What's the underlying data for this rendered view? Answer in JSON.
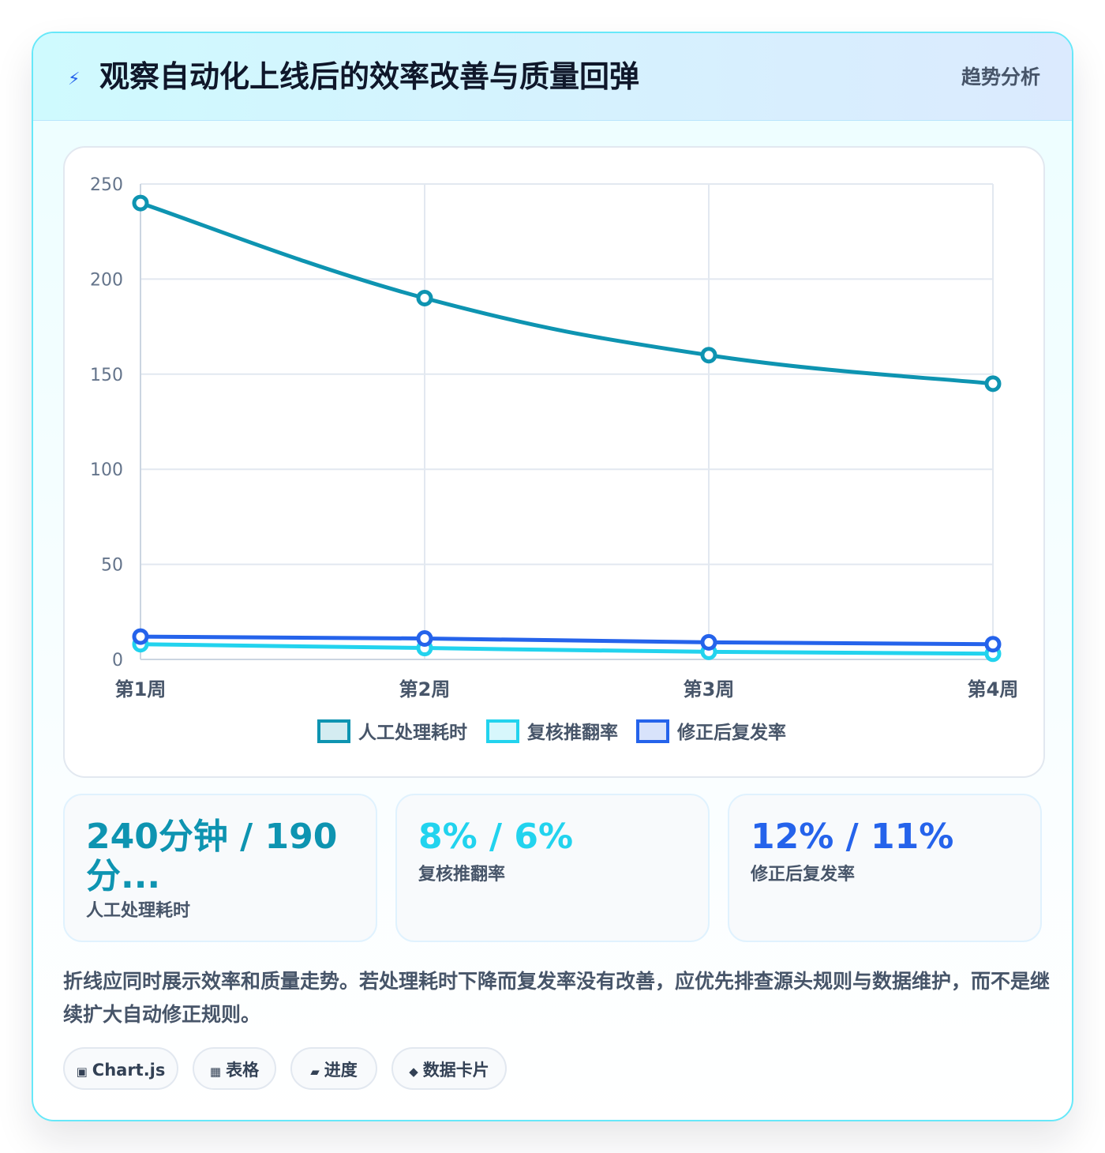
{
  "header": {
    "icon": "lightning-icon",
    "title": "观察自动化上线后的效率改善与质量回弹",
    "tag": "趋势分析"
  },
  "chart_data": {
    "type": "line",
    "categories": [
      "第1周",
      "第2周",
      "第3周",
      "第4周"
    ],
    "series": [
      {
        "name": "人工处理耗时",
        "values": [
          240,
          190,
          160,
          145
        ],
        "color": "#0e94b1"
      },
      {
        "name": "复核推翻率",
        "values": [
          8,
          6,
          4,
          3
        ],
        "color": "#22d3ee"
      },
      {
        "name": "修正后复发率",
        "values": [
          12,
          11,
          9,
          8
        ],
        "color": "#2563eb"
      }
    ],
    "ylim": [
      0,
      250
    ],
    "yticks": [
      0,
      50,
      100,
      150,
      200,
      250
    ],
    "grid": true,
    "legend": "bottom"
  },
  "stats": [
    {
      "value": "240分钟 / 190分...",
      "label": "人工处理耗时",
      "color": "#0e94b1"
    },
    {
      "value": "8% / 6%",
      "label": "复核推翻率",
      "color": "#22d3ee"
    },
    {
      "value": "12% / 11%",
      "label": "修正后复发率",
      "color": "#2563eb"
    }
  ],
  "note": "折线应同时展示效率和质量走势。若处理耗时下降而复发率没有改善，应优先排查源头规则与数据维护，而不是继续扩大自动修正规则。",
  "chips": [
    {
      "icon": "square-icon",
      "glyph": "▣",
      "label": "Chart.js"
    },
    {
      "icon": "table-icon",
      "glyph": "▦",
      "label": "表格"
    },
    {
      "icon": "progress-icon",
      "glyph": "▰",
      "label": "进度"
    },
    {
      "icon": "diamond-icon",
      "glyph": "◆",
      "label": "数据卡片"
    }
  ]
}
